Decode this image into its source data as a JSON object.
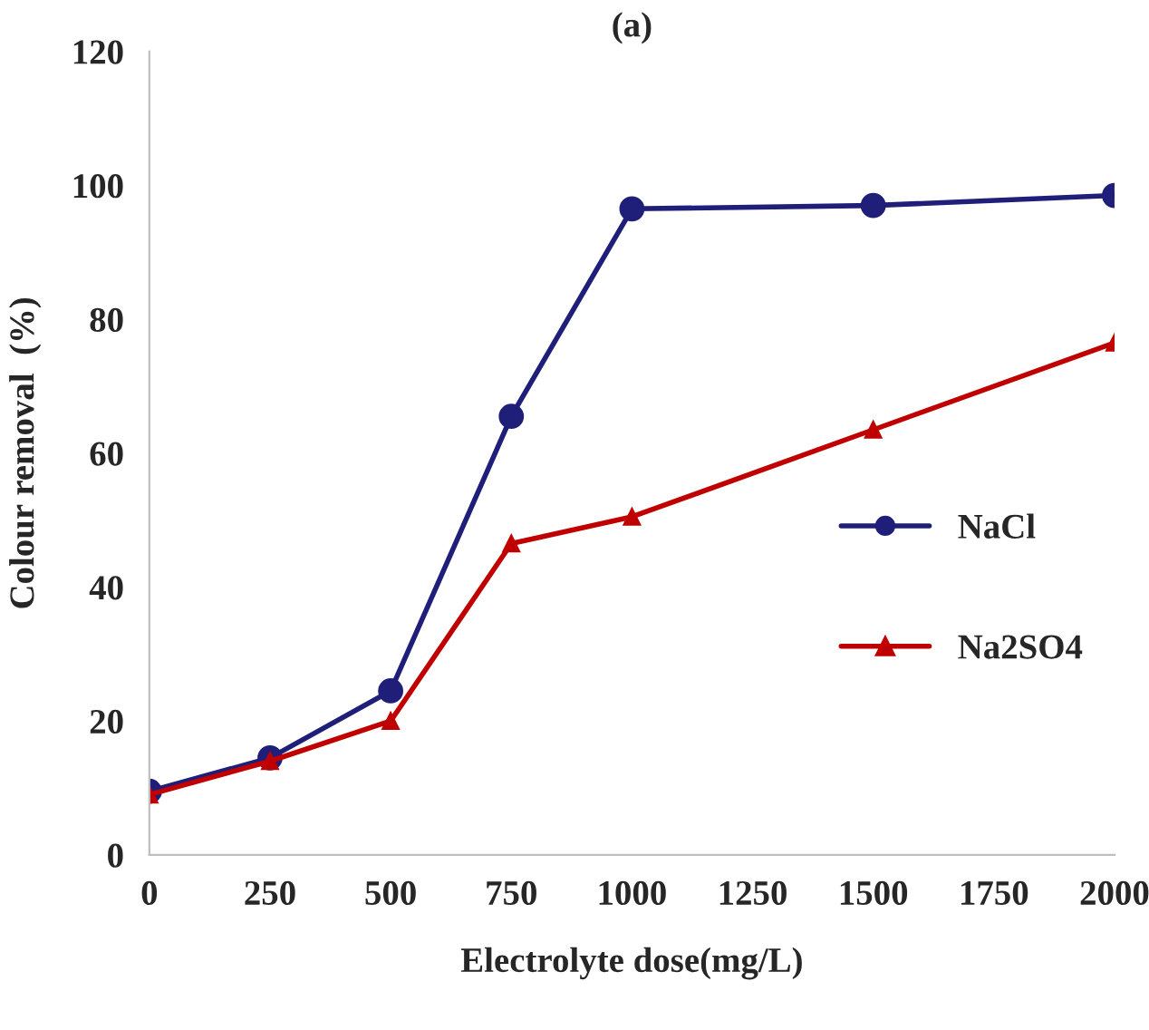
{
  "chart_data": {
    "type": "line",
    "title": "(a)",
    "xlabel": "Electrolyte dose(mg/L)",
    "ylabel": "Colour removal  (%)",
    "x": [
      0,
      250,
      500,
      750,
      1000,
      1500,
      2000
    ],
    "series": [
      {
        "name": "NaCl",
        "color": "#1f1f7a",
        "marker": "circle",
        "values": [
          9.5,
          14.5,
          24.5,
          65.5,
          96.5,
          97,
          98.5
        ]
      },
      {
        "name": "Na2SO4",
        "color": "#c00000",
        "marker": "triangle",
        "values": [
          9,
          14,
          20,
          46.5,
          50.5,
          63.5,
          76.5
        ]
      }
    ],
    "xlim": [
      0,
      2000
    ],
    "xticks": [
      0,
      250,
      500,
      750,
      1000,
      1250,
      1500,
      1750,
      2000
    ],
    "ylim": [
      0,
      120
    ],
    "yticks": [
      0,
      20,
      40,
      60,
      80,
      100,
      120
    ],
    "grid": false,
    "legend": "right",
    "line_style": "solid"
  }
}
